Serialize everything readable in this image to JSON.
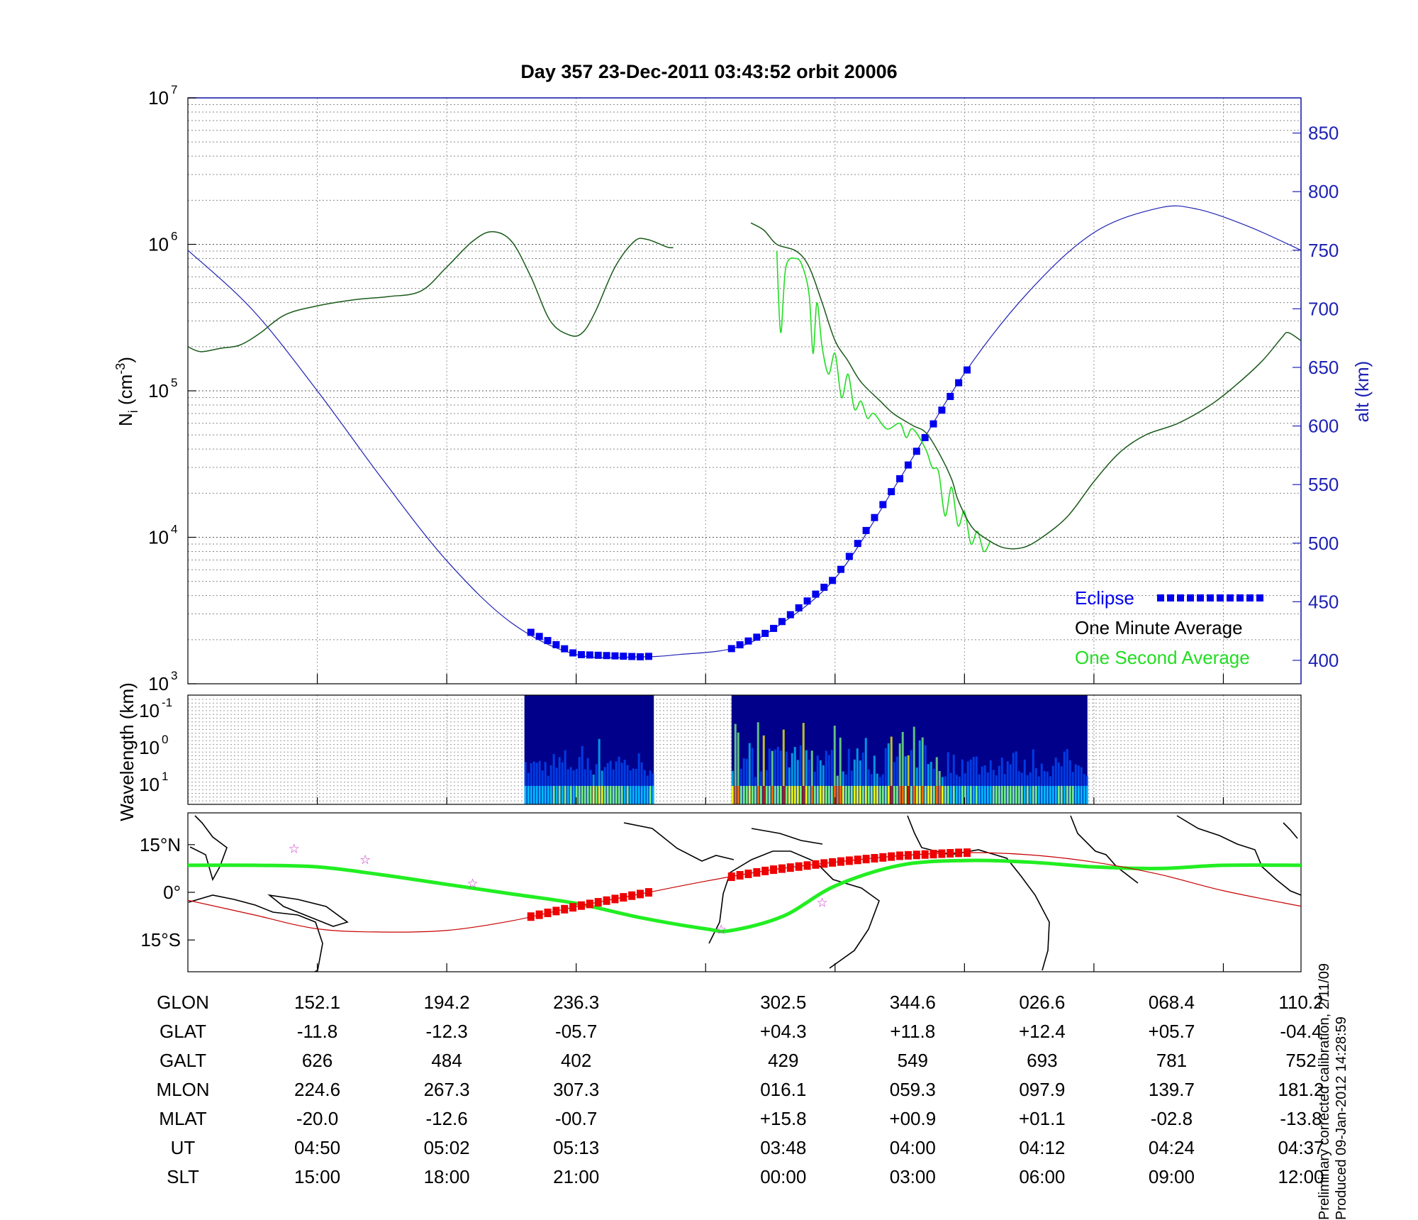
{
  "chart_data": [
    {
      "type": "line",
      "title": "Day 357  23-Dec-2011 03:43:52   orbit 20006",
      "ylabel": "N",
      "ylabel_sub": "i",
      "ylabel_unit": " (cm",
      "ylabel_exp": "-3",
      "ylabel_close": ")",
      "yscale": "log",
      "ylim": [
        1000,
        10000000
      ],
      "y_ticks": [
        {
          "base": "10",
          "exp": "3"
        },
        {
          "base": "10",
          "exp": "4"
        },
        {
          "base": "10",
          "exp": "5"
        },
        {
          "base": "10",
          "exp": "6"
        },
        {
          "base": "10",
          "exp": "7"
        }
      ],
      "y2label": "alt (km)",
      "y2lim": [
        380,
        880
      ],
      "y2_ticks": [
        "400",
        "450",
        "500",
        "550",
        "600",
        "650",
        "700",
        "750",
        "800",
        "850"
      ],
      "grid": true,
      "legend_position": "bottom-right",
      "legend": [
        {
          "label": "Eclipse",
          "color": "#0000ee"
        },
        {
          "label": "One Minute Average",
          "color": "#000000"
        },
        {
          "label": "One Second Average",
          "color": "#22dd22"
        }
      ],
      "x_index_range": [
        0,
        8.6
      ],
      "series": [
        {
          "name": "One Minute Average",
          "color": "#1a5a1a",
          "segments": [
            [
              [
                0,
                200000
              ],
              [
                0.1,
                185000
              ],
              [
                0.25,
                195000
              ],
              [
                0.4,
                205000
              ],
              [
                0.55,
                245000
              ],
              [
                0.75,
                330000
              ],
              [
                1.0,
                380000
              ],
              [
                1.3,
                420000
              ],
              [
                1.55,
                440000
              ],
              [
                1.8,
                480000
              ],
              [
                2.0,
                700000
              ],
              [
                2.2,
                1050000
              ],
              [
                2.35,
                1220000
              ],
              [
                2.5,
                1050000
              ],
              [
                2.65,
                600000
              ],
              [
                2.8,
                300000
              ],
              [
                2.95,
                240000
              ],
              [
                3.05,
                250000
              ],
              [
                3.15,
                350000
              ],
              [
                3.3,
                700000
              ],
              [
                3.45,
                1050000
              ],
              [
                3.55,
                1080000
              ],
              [
                3.7,
                960000
              ],
              [
                3.75,
                950000
              ]
            ],
            [
              [
                4.35,
                1400000
              ],
              [
                4.45,
                1250000
              ],
              [
                4.55,
                1000000
              ],
              [
                4.7,
                900000
              ],
              [
                4.8,
                700000
              ],
              [
                4.9,
                400000
              ],
              [
                5.0,
                220000
              ],
              [
                5.1,
                160000
              ],
              [
                5.2,
                115000
              ],
              [
                5.35,
                85000
              ],
              [
                5.45,
                70000
              ],
              [
                5.6,
                58000
              ],
              [
                5.7,
                52000
              ],
              [
                5.8,
                38000
              ],
              [
                5.9,
                25000
              ],
              [
                5.95,
                18000
              ],
              [
                6.05,
                12000
              ],
              [
                6.15,
                10000
              ],
              [
                6.3,
                8500
              ],
              [
                6.45,
                8500
              ],
              [
                6.6,
                10000
              ],
              [
                6.8,
                14000
              ],
              [
                7.0,
                24000
              ],
              [
                7.2,
                38000
              ],
              [
                7.4,
                50000
              ],
              [
                7.65,
                60000
              ],
              [
                7.9,
                80000
              ],
              [
                8.1,
                110000
              ],
              [
                8.3,
                160000
              ],
              [
                8.45,
                230000
              ],
              [
                8.5,
                250000
              ],
              [
                8.6,
                220000
              ]
            ]
          ]
        },
        {
          "name": "One Second Average",
          "color": "#22dd22",
          "segments": [
            [
              [
                4.55,
                900000
              ],
              [
                4.58,
                250000
              ],
              [
                4.62,
                700000
              ],
              [
                4.7,
                800000
              ],
              [
                4.75,
                700000
              ],
              [
                4.8,
                450000
              ],
              [
                4.83,
                180000
              ],
              [
                4.86,
                400000
              ],
              [
                4.9,
                200000
              ],
              [
                4.95,
                130000
              ],
              [
                5.0,
                180000
              ],
              [
                5.05,
                90000
              ],
              [
                5.1,
                130000
              ],
              [
                5.15,
                75000
              ],
              [
                5.2,
                85000
              ],
              [
                5.25,
                65000
              ],
              [
                5.3,
                70000
              ],
              [
                5.4,
                55000
              ],
              [
                5.5,
                60000
              ],
              [
                5.55,
                48000
              ],
              [
                5.6,
                55000
              ],
              [
                5.7,
                40000
              ],
              [
                5.75,
                30000
              ],
              [
                5.8,
                28000
              ],
              [
                5.85,
                14000
              ],
              [
                5.9,
                22000
              ],
              [
                5.95,
                12000
              ],
              [
                6.0,
                15000
              ],
              [
                6.05,
                9000
              ],
              [
                6.1,
                11000
              ],
              [
                6.15,
                8000
              ],
              [
                6.2,
                9500
              ]
            ]
          ]
        }
      ],
      "altitude_km": [
        [
          0,
          750
        ],
        [
          0.5,
          699
        ],
        [
          1.0,
          630
        ],
        [
          1.5,
          555
        ],
        [
          2.0,
          485
        ],
        [
          2.5,
          432
        ],
        [
          3.0,
          405
        ],
        [
          3.5,
          403
        ],
        [
          3.8,
          405
        ],
        [
          4.2,
          410
        ],
        [
          4.5,
          425
        ],
        [
          5.0,
          470
        ],
        [
          5.5,
          555
        ],
        [
          6.0,
          645
        ],
        [
          6.5,
          715
        ],
        [
          7.0,
          765
        ],
        [
          7.5,
          786
        ],
        [
          7.8,
          785
        ],
        [
          8.2,
          770
        ],
        [
          8.6,
          750
        ]
      ],
      "eclipse_segments": [
        [
          2.65,
          3.6
        ],
        [
          4.2,
          6.05
        ]
      ]
    },
    {
      "type": "heatmap",
      "ylabel": "Wavelength (km)",
      "y_ticks": [
        {
          "base": "10",
          "exp": "-1"
        },
        {
          "base": "10",
          "exp": "0"
        },
        {
          "base": "10",
          "exp": "1"
        }
      ],
      "data_windows": [
        [
          2.6,
          3.6
        ],
        [
          4.2,
          6.95
        ]
      ],
      "colorscale": [
        "#00008b",
        "#0050ff",
        "#00c8ff",
        "#7fff7f",
        "#ffff00",
        "#ff6000",
        "#c00000"
      ]
    },
    {
      "type": "line",
      "ylabel": "latitude",
      "y_ticks": [
        "15°S",
        "0°",
        "15°N"
      ],
      "ylim": [
        -25,
        25
      ],
      "magnetic_equator": [
        [
          0,
          8.5
        ],
        [
          0.5,
          8.5
        ],
        [
          1.0,
          8.0
        ],
        [
          1.5,
          5.5
        ],
        [
          2.0,
          2.5
        ],
        [
          2.5,
          -0.5
        ],
        [
          3.0,
          -3.5
        ],
        [
          3.5,
          -8.0
        ],
        [
          4.0,
          -11.5
        ],
        [
          4.2,
          -12.0
        ],
        [
          4.6,
          -7.5
        ],
        [
          5.0,
          2.0
        ],
        [
          5.5,
          8.5
        ],
        [
          6.0,
          10.0
        ],
        [
          6.5,
          9.5
        ],
        [
          7.0,
          8.0
        ],
        [
          7.5,
          7.5
        ],
        [
          8.0,
          8.5
        ],
        [
          8.6,
          8.5
        ]
      ],
      "orbit_track": [
        [
          0,
          -2.5
        ],
        [
          0.5,
          -7.0
        ],
        [
          1.0,
          -11.5
        ],
        [
          1.5,
          -12.5
        ],
        [
          2.0,
          -12.0
        ],
        [
          2.5,
          -9.0
        ],
        [
          3.0,
          -4.5
        ],
        [
          3.5,
          -0.5
        ],
        [
          4.0,
          3.5
        ],
        [
          4.5,
          7.0
        ],
        [
          5.0,
          9.5
        ],
        [
          5.5,
          11.5
        ],
        [
          6.0,
          12.5
        ],
        [
          6.5,
          11.8
        ],
        [
          7.0,
          9.5
        ],
        [
          7.5,
          5.7
        ],
        [
          8.0,
          0.5
        ],
        [
          8.6,
          -4.4
        ]
      ],
      "stars": [
        [
          0.82,
          14.0
        ],
        [
          1.37,
          10.5
        ],
        [
          2.2,
          3.0
        ],
        [
          4.12,
          -11.5
        ],
        [
          4.9,
          -3.0
        ]
      ]
    }
  ],
  "table": {
    "columns": [
      1,
      2,
      3,
      4.6,
      5.6,
      6.6,
      7.6,
      8.6
    ],
    "rows": [
      {
        "label": "GLON",
        "values": [
          "152.1",
          "194.2",
          "236.3",
          "302.5",
          "344.6",
          "026.6",
          "068.4",
          "110.2"
        ]
      },
      {
        "label": "GLAT",
        "values": [
          "-11.8",
          "-12.3",
          "-05.7",
          "+04.3",
          "+11.8",
          "+12.4",
          "+05.7",
          "-04.4"
        ]
      },
      {
        "label": "GALT",
        "values": [
          "626",
          "484",
          "402",
          "429",
          "549",
          "693",
          "781",
          "752"
        ]
      },
      {
        "label": "MLON",
        "values": [
          "224.6",
          "267.3",
          "307.3",
          "016.1",
          "059.3",
          "097.9",
          "139.7",
          "181.2"
        ]
      },
      {
        "label": "MLAT",
        "values": [
          "-20.0",
          "-12.6",
          "-00.7",
          "+15.8",
          "+00.9",
          "+01.1",
          "-02.8",
          "-13.8"
        ]
      },
      {
        "label": "UT",
        "values": [
          "04:50",
          "05:02",
          "05:13",
          "03:48",
          "04:00",
          "04:12",
          "04:24",
          "04:37"
        ]
      },
      {
        "label": "SLT",
        "values": [
          "15:00",
          "18:00",
          "21:00",
          "00:00",
          "03:00",
          "06:00",
          "09:00",
          "12:00"
        ]
      }
    ]
  },
  "footer": {
    "line1": "Preliminary corrected calibration, 2/11/09",
    "line2": "Produced 09-Jan-2012 14:28:59"
  }
}
